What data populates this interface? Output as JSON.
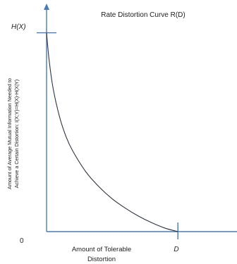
{
  "chart_data": {
    "type": "line",
    "title": "Rate Distortion Curve R(D)",
    "xlabel_lines": [
      "Amount of Tolerable",
      "Distortion"
    ],
    "ylabel_lines": [
      "Amount of Average Mutual Information Needed to",
      "Achieve a Certain Distortion: I(X;Y)=H(X)-H(X|Y)"
    ],
    "x_tick_label": "D",
    "y_tick_label": "H(X)",
    "origin_label": "0",
    "xlim": [
      0,
      1.45
    ],
    "ylim": [
      0,
      1.14
    ],
    "series": [
      {
        "x": [
          0,
          0.02,
          0.05,
          0.1,
          0.15,
          0.2,
          0.3,
          0.4,
          0.5,
          0.6,
          0.7,
          0.8,
          0.9,
          1.0
        ],
        "y": [
          1.0,
          0.86,
          0.72,
          0.575,
          0.475,
          0.405,
          0.3,
          0.225,
          0.165,
          0.118,
          0.078,
          0.045,
          0.018,
          0.0
        ]
      }
    ],
    "colors": {
      "axis": "#4a7ab5",
      "curve": "#2e3440",
      "text": "#222222"
    }
  }
}
